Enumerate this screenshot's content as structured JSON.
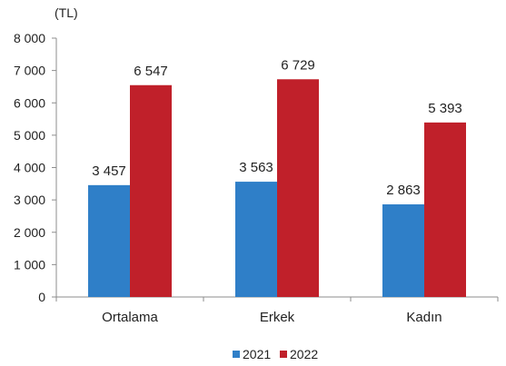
{
  "chart_data": {
    "type": "bar",
    "unit_label": "(TL)",
    "categories": [
      "Ortalama",
      "Erkek",
      "Kadın"
    ],
    "series": [
      {
        "name": "2021",
        "color": "#2f7fc8",
        "values": [
          3457,
          3563,
          2863
        ],
        "labels": [
          "3 457",
          "3 563",
          "2 863"
        ]
      },
      {
        "name": "2022",
        "color": "#c0202a",
        "values": [
          6547,
          6729,
          5393
        ],
        "labels": [
          "6 547",
          "6 729",
          "5 393"
        ]
      }
    ],
    "ylim": [
      0,
      8000
    ],
    "yticks": [
      0,
      1000,
      2000,
      3000,
      4000,
      5000,
      6000,
      7000,
      8000
    ],
    "ytick_labels": [
      "0",
      "1 000",
      "2 000",
      "3 000",
      "4 000",
      "5 000",
      "6 000",
      "7 000",
      "8 000"
    ],
    "grid": false,
    "legend_position": "bottom"
  }
}
